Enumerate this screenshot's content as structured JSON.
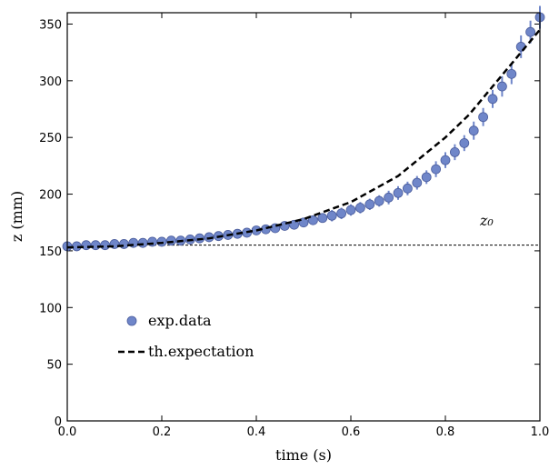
{
  "chart_data": {
    "type": "scatter",
    "xlabel": "time (s)",
    "ylabel": "z (mm)",
    "xlim": [
      0,
      1
    ],
    "ylim": [
      0,
      360
    ],
    "xticks": [
      {
        "value": 0,
        "label": "0.0"
      },
      0.2,
      0.4,
      0.6,
      0.8,
      {
        "value": 1,
        "label": "1.0"
      }
    ],
    "yticks": [
      0,
      50,
      100,
      150,
      200,
      250,
      300,
      350
    ],
    "legend": "lower left",
    "series": [
      {
        "name": "exp.data",
        "kind": "points",
        "color": "#6f86c9",
        "x": [
          0,
          0.02,
          0.04,
          0.06,
          0.08,
          0.1,
          0.12,
          0.14,
          0.16,
          0.18,
          0.2,
          0.22,
          0.24,
          0.26,
          0.28,
          0.3,
          0.32,
          0.34,
          0.36,
          0.38,
          0.4,
          0.42,
          0.44,
          0.46,
          0.48,
          0.5,
          0.52,
          0.54,
          0.56,
          0.58,
          0.6,
          0.62,
          0.64,
          0.66,
          0.68,
          0.7,
          0.72,
          0.74,
          0.76,
          0.78,
          0.8,
          0.82,
          0.84,
          0.86,
          0.88,
          0.9,
          0.92,
          0.94,
          0.96,
          0.98,
          1
        ],
        "values": [
          154,
          154,
          155,
          155,
          155,
          156,
          156,
          157,
          157,
          158,
          158,
          159,
          159,
          160,
          161,
          162,
          163,
          164,
          165,
          166,
          168,
          169,
          170,
          172,
          173,
          175,
          177,
          179,
          181,
          183,
          186,
          188,
          191,
          194,
          197,
          201,
          205,
          210,
          215,
          222,
          230,
          237,
          245,
          256,
          268,
          284,
          295,
          306,
          330,
          343,
          356
        ],
        "yerr": [
          2,
          2,
          2,
          2,
          2,
          2,
          2,
          2,
          2,
          2,
          2,
          2,
          2,
          3,
          3,
          3,
          3,
          3,
          3,
          3,
          3,
          4,
          4,
          4,
          4,
          4,
          4,
          4,
          5,
          5,
          5,
          5,
          5,
          5,
          6,
          6,
          6,
          6,
          6,
          7,
          7,
          7,
          7,
          8,
          8,
          8,
          9,
          9,
          10,
          10,
          10
        ]
      },
      {
        "name": "th.expectation",
        "kind": "line",
        "color": "#000000",
        "x": [
          0,
          0.1,
          0.2,
          0.3,
          0.4,
          0.5,
          0.6,
          0.7,
          0.8,
          0.85,
          0.9,
          0.95,
          1
        ],
        "values": [
          153,
          154,
          157,
          161,
          168,
          178,
          193,
          216,
          250,
          270,
          295,
          320,
          345
        ]
      }
    ],
    "hline": {
      "value": 155,
      "label": "z₀"
    }
  }
}
